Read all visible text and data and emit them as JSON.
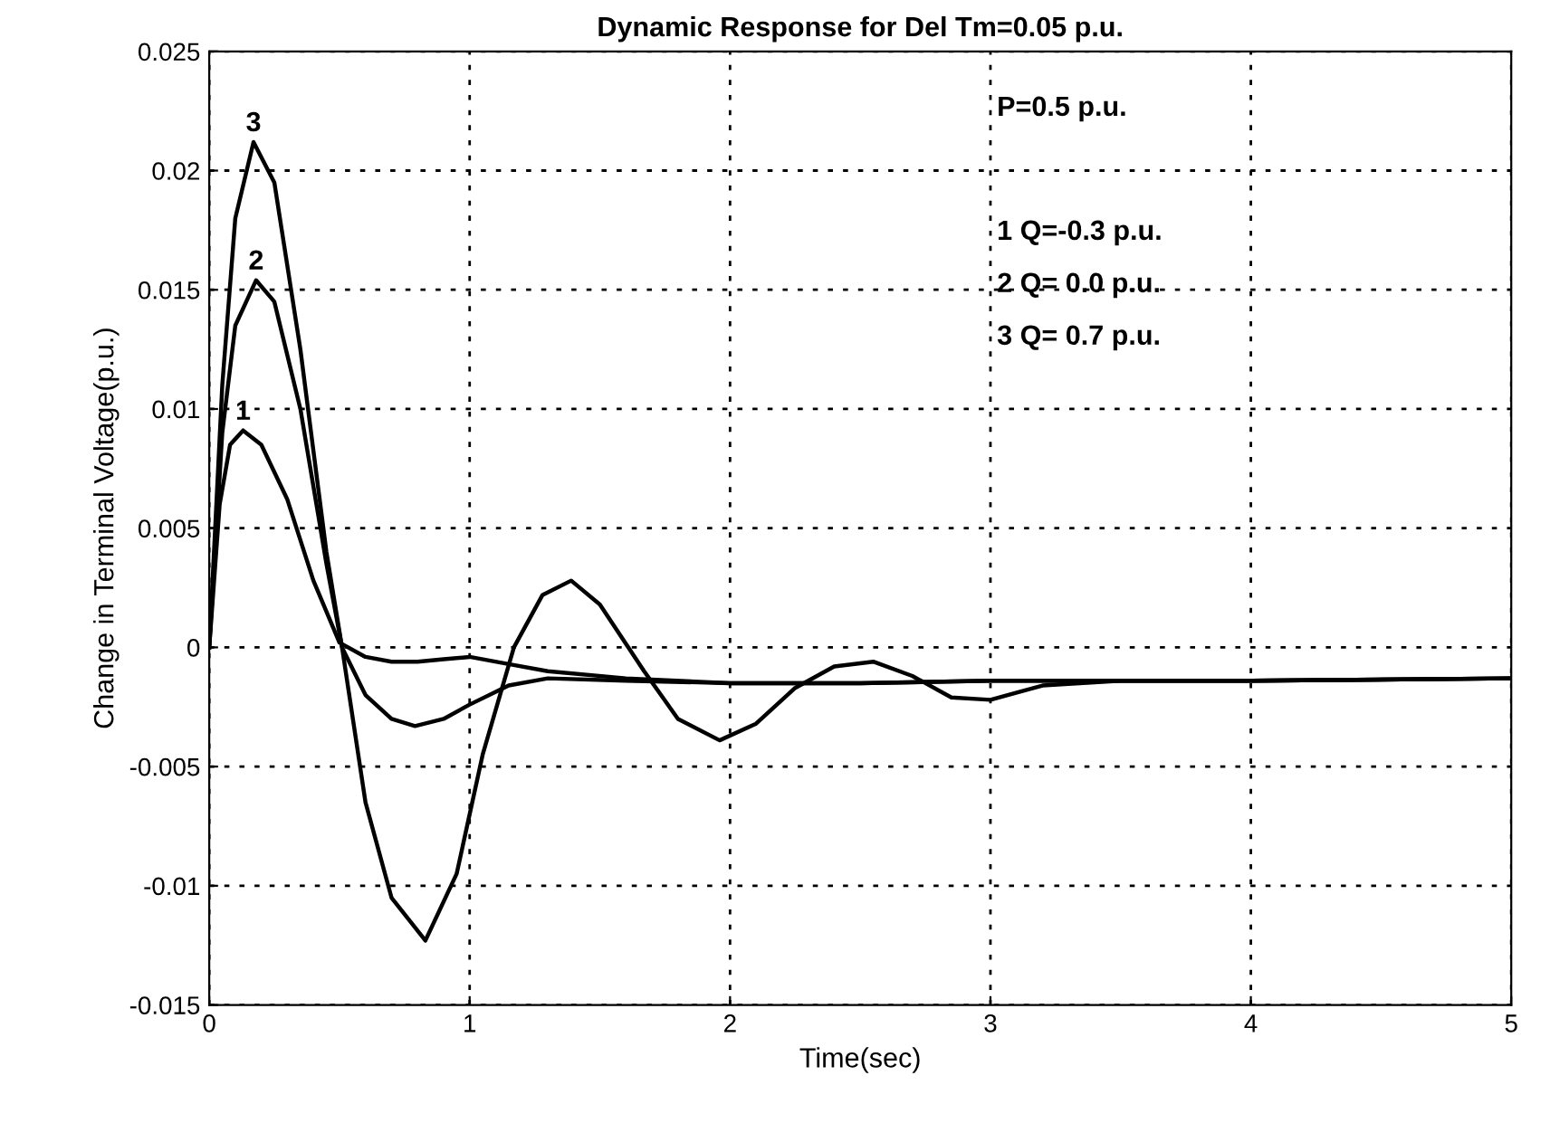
{
  "chart_data": {
    "type": "line",
    "title": "Dynamic Response for Del Tm=0.05 p.u.",
    "xlabel": "Time(sec)",
    "ylabel": "Change in Terminal Voltage(p.u.)",
    "xlim": [
      0,
      5
    ],
    "ylim": [
      -0.015,
      0.025
    ],
    "xticks": [
      0,
      1,
      2,
      3,
      4,
      5
    ],
    "yticks": [
      -0.015,
      -0.01,
      -0.005,
      0,
      0.005,
      0.01,
      0.015,
      0.02,
      0.025
    ],
    "grid": true,
    "line_style": "solid",
    "marker": "none",
    "series": [
      {
        "name": "1",
        "color": "#000000",
        "x": [
          0,
          0.04,
          0.08,
          0.13,
          0.2,
          0.3,
          0.4,
          0.5,
          0.6,
          0.7,
          0.8,
          0.9,
          1.0,
          1.15,
          1.3,
          1.6,
          2.0,
          2.5,
          3.0,
          4.0,
          5.0
        ],
        "values": [
          0,
          0.006,
          0.0085,
          0.0091,
          0.0085,
          0.0062,
          0.0028,
          0.0002,
          -0.0004,
          -0.0006,
          -0.0006,
          -0.0005,
          -0.0004,
          -0.0007,
          -0.001,
          -0.0013,
          -0.0015,
          -0.0015,
          -0.0014,
          -0.0014,
          -0.0013
        ]
      },
      {
        "name": "2",
        "color": "#000000",
        "x": [
          0,
          0.05,
          0.1,
          0.18,
          0.25,
          0.35,
          0.45,
          0.51,
          0.6,
          0.7,
          0.79,
          0.9,
          1.0,
          1.15,
          1.3,
          1.6,
          2.0,
          2.5,
          3.0,
          4.0,
          5.0
        ],
        "values": [
          0,
          0.009,
          0.0135,
          0.0154,
          0.0145,
          0.01,
          0.0035,
          0,
          -0.002,
          -0.003,
          -0.0033,
          -0.003,
          -0.0024,
          -0.0016,
          -0.0013,
          -0.0014,
          -0.0015,
          -0.0015,
          -0.0014,
          -0.0014,
          -0.0013
        ]
      },
      {
        "name": "3",
        "color": "#000000",
        "x": [
          0,
          0.05,
          0.1,
          0.17,
          0.25,
          0.35,
          0.45,
          0.51,
          0.6,
          0.7,
          0.83,
          0.95,
          1.05,
          1.17,
          1.28,
          1.39,
          1.5,
          1.67,
          1.8,
          1.96,
          2.1,
          2.25,
          2.4,
          2.55,
          2.7,
          2.85,
          3.0,
          3.2,
          3.5,
          4.0,
          5.0
        ],
        "values": [
          0,
          0.011,
          0.018,
          0.0212,
          0.0195,
          0.0125,
          0.004,
          0,
          -0.0065,
          -0.0105,
          -0.0123,
          -0.0095,
          -0.0045,
          0,
          0.0022,
          0.0028,
          0.0018,
          -0.001,
          -0.003,
          -0.0039,
          -0.0032,
          -0.0017,
          -0.0008,
          -0.0006,
          -0.0012,
          -0.0021,
          -0.0022,
          -0.0016,
          -0.0014,
          -0.0014,
          -0.0013
        ]
      }
    ],
    "annotations": [
      "P=0.5 p.u.",
      "1 Q=-0.3 p.u.",
      "2 Q= 0.0 p.u.",
      "3 Q= 0.7 p.u."
    ]
  }
}
